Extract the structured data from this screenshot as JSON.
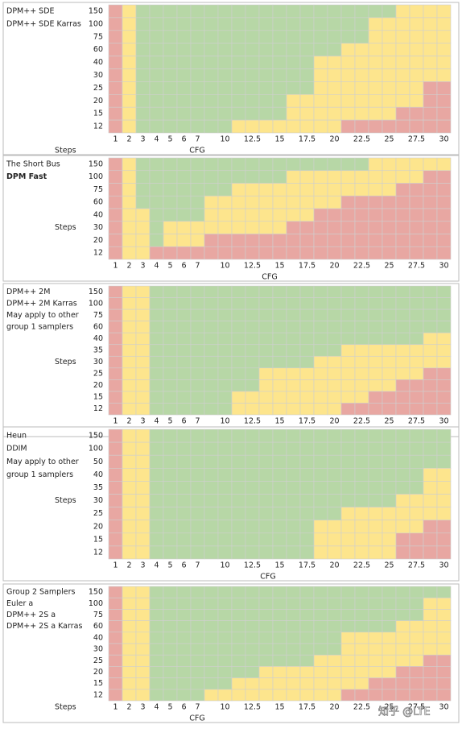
{
  "palette": {
    "R": "#e8a7a2",
    "Y": "#fde58d",
    "G": "#b7d7a6"
  },
  "watermark": "知乎 @LTE",
  "panels": [
    {
      "labels": [
        "DPM++ SDE",
        "DPM++ SDE Karras"
      ],
      "steps_label": "Steps",
      "steps": [
        150,
        100,
        75,
        60,
        40,
        30,
        25,
        20,
        15,
        12
      ],
      "cfg": [
        1,
        2,
        3,
        4,
        5,
        6,
        7,
        null,
        10,
        null,
        12.5,
        null,
        15,
        null,
        17.5,
        null,
        20,
        null,
        22.5,
        null,
        25,
        null,
        27.5,
        null,
        30
      ],
      "cfg_label": "CFG",
      "cells": [
        "RYGGGGGGGGGGGGGGGGGGGYYYY",
        "RYGGGGGGGGGGGGGGGGGYYYYYY",
        "RYGGGGGGGGGGGGGGGGGYYYYYY",
        "RYGGGGGGGGGGGGGGGYYYYYYYY",
        "RYGGGGGGGGGGGGGYYYYYYYYYY",
        "RYGGGGGGGGGGGGGYYYYYYYYYY",
        "RYGGGGGGGGGGGGGYYYYYYYYRR",
        "RYGGGGGGGGGGGYYYYYYYYYYRR",
        "RYGGGGGGGGGGGYYYYYYYYRRRR",
        "RYGGGGGGGYYYYYYYYRRRRRRRR"
      ]
    },
    {
      "labels": [
        "The Short Bus",
        "DPM Fast"
      ],
      "steps_label": "Steps",
      "steps": [
        150,
        100,
        75,
        60,
        40,
        30,
        20,
        12
      ],
      "cfg": [
        1,
        2,
        3,
        4,
        5,
        6,
        7,
        null,
        10,
        null,
        12.5,
        null,
        15,
        null,
        17.5,
        null,
        20,
        null,
        22.5,
        null,
        25,
        null,
        27.5,
        null,
        30
      ],
      "cfg_label": "CFG",
      "cells": [
        "RYGGGGGGGGGGGGGGGGGYYYYYY",
        "RYGGGGGGGGGGGYYYYYYYYYYRR",
        "RYGGGGGGGYYYYYYYYYYYYRRRR",
        "RYGGGGGYYYYYYYYYYRRRRRRRR",
        "RYYGGGGYYYYYYYYRRRRRRRRRR",
        "RYYGYYYYYYYYYRRRRRRRRRRRR",
        "RYYGYYYRRRRRRRRRRRRRRRRRR",
        "RYYRRRRRRRRRRRRRRRRRRRRRR"
      ]
    },
    {
      "labels": [
        "DPM++ 2M",
        "DPM++ 2M Karras",
        "May apply to other",
        "group 1 samplers"
      ],
      "steps_label": "Steps",
      "steps": [
        150,
        100,
        75,
        60,
        40,
        35,
        30,
        25,
        20,
        15,
        12
      ],
      "cfg": [
        1,
        2,
        3,
        4,
        5,
        6,
        7,
        null,
        10,
        null,
        12.5,
        null,
        15,
        null,
        17.5,
        null,
        20,
        null,
        22.5,
        null,
        25,
        null,
        27.5,
        null,
        30
      ],
      "cells": [
        "RYYGGGGGGGGGGGGGGGGGGGGGG",
        "RYYGGGGGGGGGGGGGGGGGGGGGG",
        "RYYGGGGGGGGGGGGGGGGGGGGGG",
        "RYYGGGGGGGGGGGGGGGGGGGGGG",
        "RYYGGGGGGGGGGGGGGGGGGGGYY",
        "RYYGGGGGGGGGGGGGGYYYYYYYY",
        "RYYGGGGGGGGGGGGYYYYYYYYYY",
        "RYYGGGGGGGGYYYYYYYYYYYYRR",
        "RYYGGGGGGGGYYYYYYYYYYRRRR",
        "RYYGGGGGGYYYYYYYYYYRRRRRR",
        "RYYGGGGGGYYYYYYYYRRRRRRRR"
      ]
    },
    {
      "labels": [
        "Heun",
        "DDIM",
        "May apply to other",
        "group 1 samplers"
      ],
      "steps_label": "Steps",
      "steps": [
        150,
        100,
        50,
        40,
        35,
        30,
        25,
        20,
        15,
        12
      ],
      "cfg": [
        1,
        2,
        3,
        4,
        5,
        6,
        7,
        null,
        10,
        null,
        12.5,
        null,
        15,
        null,
        17.5,
        null,
        20,
        null,
        22.5,
        null,
        25,
        null,
        27.5,
        null,
        30
      ],
      "cfg_label": "CFG",
      "cells": [
        "RYYGGGGGGGGGGGGGGGGGGGGGG",
        "RYYGGGGGGGGGGGGGGGGGGGGGG",
        "RYYGGGGGGGGGGGGGGGGGGGGGG",
        "RYYGGGGGGGGGGGGGGGGGGGGYY",
        "RYYGGGGGGGGGGGGGGGGGGGGYY",
        "RYYGGGGGGGGGGGGGGGGGGYYYY",
        "RYYGGGGGGGGGGGGGGYYYYYYYY",
        "RYYGGGGGGGGGGGGYYYYYYYYRR",
        "RYYGGGGGGGGGGGGYYYYYYRRRR",
        "RYYGGGGGGGGGGGGYYYYYYRRRR"
      ]
    },
    {
      "labels": [
        "Group 2 Samplers",
        "Euler a",
        "DPM++ 2S a",
        "DPM++ 2S a Karras"
      ],
      "steps_label": "Steps",
      "steps": [
        150,
        100,
        75,
        60,
        40,
        30,
        25,
        20,
        15,
        12
      ],
      "cfg": [
        1,
        2,
        3,
        4,
        5,
        6,
        7,
        null,
        10,
        null,
        12.5,
        null,
        15,
        null,
        17.5,
        null,
        20,
        null,
        22.5,
        null,
        25,
        null,
        27.5,
        null,
        30
      ],
      "cfg_label": "CFG",
      "cells": [
        "RYYGGGGGGGGGGGGGGGGGGGGGG",
        "RYYGGGGGGGGGGGGGGGGGGGGYY",
        "RYYGGGGGGGGGGGGGGGGGGGGYY",
        "RYYGGGGGGGGGGGGGGGGGGYYYY",
        "RYYGGGGGGGGGGGGGGYYYYYYYY",
        "RYYGGGGGGGGGGGGGGYYYYYYYY",
        "RYYGGGGGGGGGGGGYYYYYYYYRR",
        "RYYGGGGGGGGYYYYYYYYYYRRRR",
        "RYYGGGGGGYYYYYYYYYYRRRRRR",
        "RYYGGGGYYYYYYYYYYRRRRRRRR"
      ]
    }
  ]
}
